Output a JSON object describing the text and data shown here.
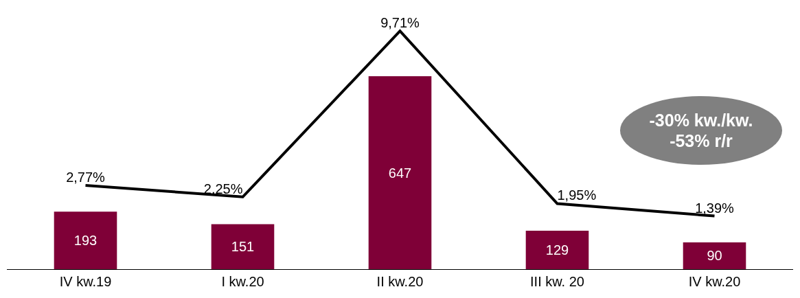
{
  "chart_data": {
    "type": "bar",
    "categories": [
      "IV kw.19",
      "I kw.20",
      "II kw.20",
      "III kw. 20",
      "IV kw.20"
    ],
    "series": [
      {
        "color": "#7f0037",
        "values": [
          193,
          151,
          647,
          129,
          90
        ],
        "value_labels": [
          "193",
          "151",
          "647",
          "129",
          "90"
        ]
      },
      {
        "type": "line",
        "axis": "y2",
        "color": "#000000",
        "values": [
          2.77,
          2.25,
          9.71,
          1.95,
          1.39
        ],
        "value_labels": [
          "2,77%",
          "2,25%",
          "9,71%",
          "1,95%",
          "1,39%"
        ]
      }
    ],
    "tick_labels": "x",
    "grid": false,
    "legend": false,
    "marker": "none",
    "annotations": [
      "-30% kw./kw.\n-53% r/r"
    ]
  }
}
